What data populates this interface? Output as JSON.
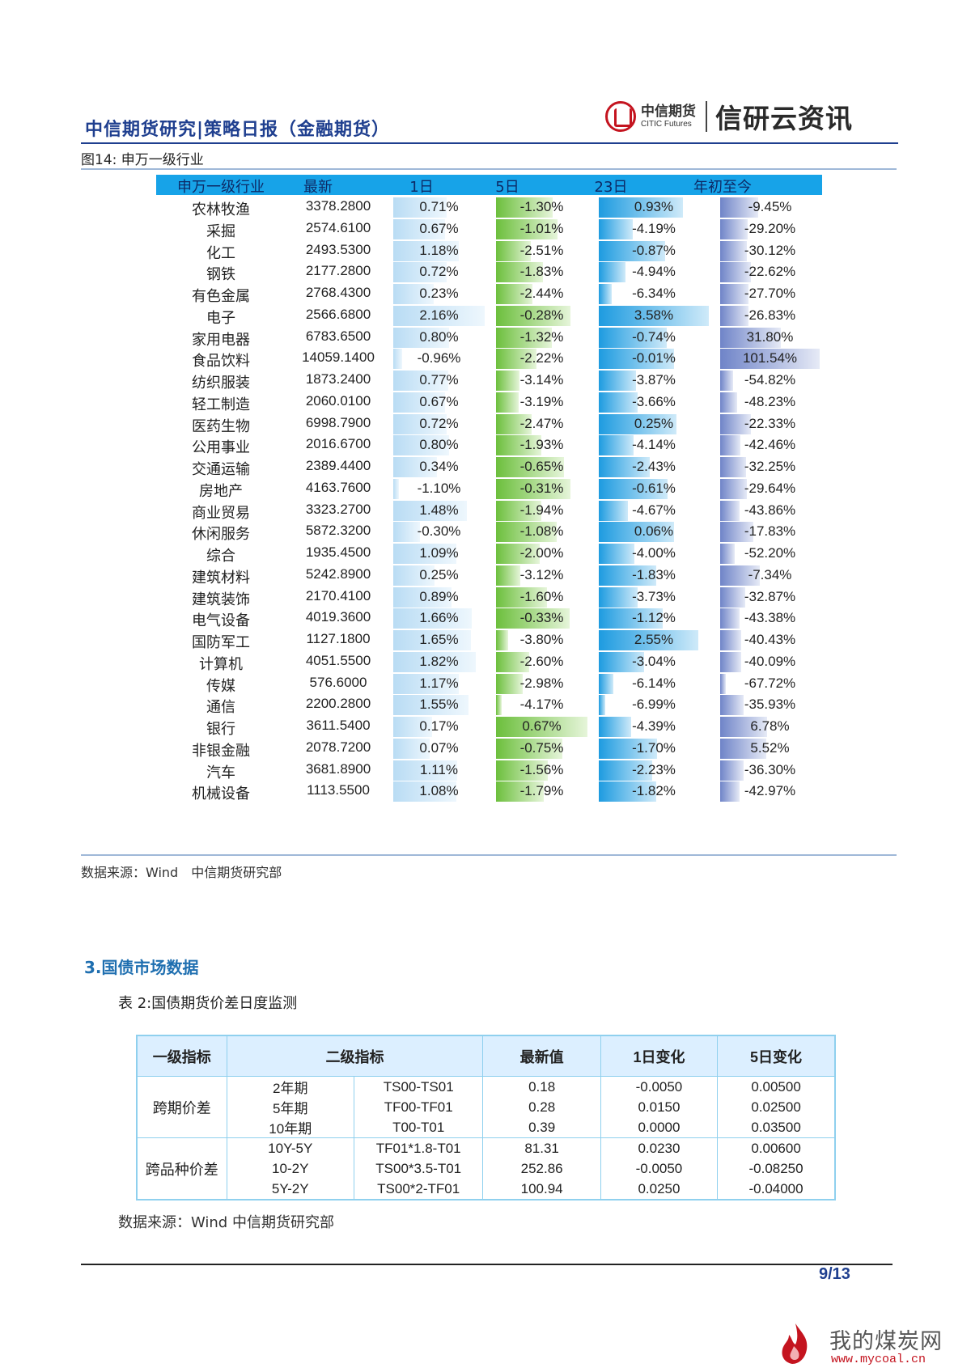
{
  "header": {
    "title": "中信期货研究|策略日报（金融期货）",
    "logo_cn": "中信期货",
    "logo_en": "CITIC Futures",
    "brand": "信研云资讯"
  },
  "figure": {
    "caption": "图14: 申万一级行业",
    "source": "数据来源：Wind　中信期货研究部"
  },
  "chart_data": {
    "type": "table",
    "title": "图14: 申万一级行业",
    "columns": [
      "申万一级行业",
      "最新",
      "1日",
      "5日",
      "23日",
      "年初至今"
    ],
    "rows": [
      {
        "name": "农林牧渔",
        "latest": "3378.2800",
        "d1": "0.71%",
        "d5": "-1.30%",
        "d23": "0.93%",
        "ytd": "-9.45%"
      },
      {
        "name": "采掘",
        "latest": "2574.6100",
        "d1": "0.67%",
        "d5": "-1.01%",
        "d23": "-4.19%",
        "ytd": "-29.20%"
      },
      {
        "name": "化工",
        "latest": "2493.5300",
        "d1": "1.18%",
        "d5": "-2.51%",
        "d23": "-0.87%",
        "ytd": "-30.12%"
      },
      {
        "name": "钢铁",
        "latest": "2177.2800",
        "d1": "0.72%",
        "d5": "-1.83%",
        "d23": "-4.94%",
        "ytd": "-22.62%"
      },
      {
        "name": "有色金属",
        "latest": "2768.4300",
        "d1": "0.23%",
        "d5": "-2.44%",
        "d23": "-6.34%",
        "ytd": "-27.70%"
      },
      {
        "name": "电子",
        "latest": "2566.6800",
        "d1": "2.16%",
        "d5": "-0.28%",
        "d23": "3.58%",
        "ytd": "-26.83%"
      },
      {
        "name": "家用电器",
        "latest": "6783.6500",
        "d1": "0.80%",
        "d5": "-1.32%",
        "d23": "-0.74%",
        "ytd": "31.80%"
      },
      {
        "name": "食品饮料",
        "latest": "14059.1400",
        "d1": "-0.96%",
        "d5": "-2.22%",
        "d23": "-0.01%",
        "ytd": "101.54%"
      },
      {
        "name": "纺织服装",
        "latest": "1873.2400",
        "d1": "0.77%",
        "d5": "-3.14%",
        "d23": "-3.87%",
        "ytd": "-54.82%"
      },
      {
        "name": "轻工制造",
        "latest": "2060.0100",
        "d1": "0.67%",
        "d5": "-3.19%",
        "d23": "-3.66%",
        "ytd": "-48.23%"
      },
      {
        "name": "医药生物",
        "latest": "6998.7900",
        "d1": "0.72%",
        "d5": "-2.47%",
        "d23": "0.25%",
        "ytd": "-22.33%"
      },
      {
        "name": "公用事业",
        "latest": "2016.6700",
        "d1": "0.80%",
        "d5": "-1.93%",
        "d23": "-4.14%",
        "ytd": "-42.46%"
      },
      {
        "name": "交通运输",
        "latest": "2389.4400",
        "d1": "0.34%",
        "d5": "-0.65%",
        "d23": "-2.43%",
        "ytd": "-32.25%"
      },
      {
        "name": "房地产",
        "latest": "4163.7600",
        "d1": "-1.10%",
        "d5": "-0.31%",
        "d23": "-0.61%",
        "ytd": "-29.64%"
      },
      {
        "name": "商业贸易",
        "latest": "3323.2700",
        "d1": "1.48%",
        "d5": "-1.94%",
        "d23": "-4.67%",
        "ytd": "-43.86%"
      },
      {
        "name": "休闲服务",
        "latest": "5872.3200",
        "d1": "-0.30%",
        "d5": "-1.08%",
        "d23": "0.06%",
        "ytd": "-17.83%"
      },
      {
        "name": "综合",
        "latest": "1935.4500",
        "d1": "1.09%",
        "d5": "-2.00%",
        "d23": "-4.00%",
        "ytd": "-52.20%"
      },
      {
        "name": "建筑材料",
        "latest": "5242.8900",
        "d1": "0.25%",
        "d5": "-3.12%",
        "d23": "-1.83%",
        "ytd": "-7.34%"
      },
      {
        "name": "建筑装饰",
        "latest": "2170.4100",
        "d1": "0.89%",
        "d5": "-1.60%",
        "d23": "-3.73%",
        "ytd": "-32.87%"
      },
      {
        "name": "电气设备",
        "latest": "4019.3600",
        "d1": "1.66%",
        "d5": "-0.33%",
        "d23": "-1.12%",
        "ytd": "-43.38%"
      },
      {
        "name": "国防军工",
        "latest": "1127.1800",
        "d1": "1.65%",
        "d5": "-3.80%",
        "d23": "2.55%",
        "ytd": "-40.43%"
      },
      {
        "name": "计算机",
        "latest": "4051.5500",
        "d1": "1.82%",
        "d5": "-2.60%",
        "d23": "-3.04%",
        "ytd": "-40.09%"
      },
      {
        "name": "传媒",
        "latest": "576.6000",
        "d1": "1.17%",
        "d5": "-2.98%",
        "d23": "-6.14%",
        "ytd": "-67.72%"
      },
      {
        "name": "通信",
        "latest": "2200.2800",
        "d1": "1.55%",
        "d5": "-4.17%",
        "d23": "-6.99%",
        "ytd": "-35.93%"
      },
      {
        "name": "银行",
        "latest": "3611.5400",
        "d1": "0.17%",
        "d5": "0.67%",
        "d23": "-4.39%",
        "ytd": "6.78%"
      },
      {
        "name": "非银金融",
        "latest": "2078.7200",
        "d1": "0.07%",
        "d5": "-0.75%",
        "d23": "-1.70%",
        "ytd": "5.52%"
      },
      {
        "name": "汽车",
        "latest": "3681.8900",
        "d1": "1.11%",
        "d5": "-1.56%",
        "d23": "-2.23%",
        "ytd": "-36.30%"
      },
      {
        "name": "机械设备",
        "latest": "1113.5500",
        "d1": "1.08%",
        "d5": "-1.79%",
        "d23": "-1.82%",
        "ytd": "-42.97%"
      }
    ]
  },
  "section": {
    "title": "3.国债市场数据",
    "table_caption": "表 2:国债期货价差日度监测",
    "source": "数据来源：Wind  中信期货研究部"
  },
  "bond_table": {
    "headers": [
      "一级指标",
      "二级指标",
      "最新值",
      "1日变化",
      "5日变化"
    ],
    "groups": [
      {
        "label": "跨期价差",
        "rows": [
          {
            "tenor": "2年期",
            "pair": "TS00-TS01",
            "latest": "0.18",
            "d1": "-0.0050",
            "d5": "0.00500"
          },
          {
            "tenor": "5年期",
            "pair": "TF00-TF01",
            "latest": "0.28",
            "d1": "0.0150",
            "d5": "0.02500"
          },
          {
            "tenor": "10年期",
            "pair": "T00-T01",
            "latest": "0.39",
            "d1": "0.0000",
            "d5": "0.03500"
          }
        ]
      },
      {
        "label": "跨品种价差",
        "rows": [
          {
            "tenor": "10Y-5Y",
            "pair": "TF01*1.8-T01",
            "latest": "81.31",
            "d1": "0.0230",
            "d5": "0.00600"
          },
          {
            "tenor": "10-2Y",
            "pair": "TS00*3.5-T01",
            "latest": "252.86",
            "d1": "-0.0050",
            "d5": "-0.08250"
          },
          {
            "tenor": "5Y-2Y",
            "pair": "TS00*2-TF01",
            "latest": "100.94",
            "d1": "0.0250",
            "d5": "-0.04000"
          }
        ]
      }
    ]
  },
  "footer": {
    "page": "9/13",
    "watermark_cn": "我的煤炭网",
    "watermark_url": "www.mycoal.cn"
  },
  "colors": {
    "brand_blue": "#1f3f8f",
    "header_bar": "#17a3e8",
    "bar_1d": "#b9dcf4",
    "bar_5d": "#6cbf3c",
    "bar_23d": "#1d9be0",
    "bar_ytd": "#6f84c8",
    "logo_red": "#c4141f"
  }
}
